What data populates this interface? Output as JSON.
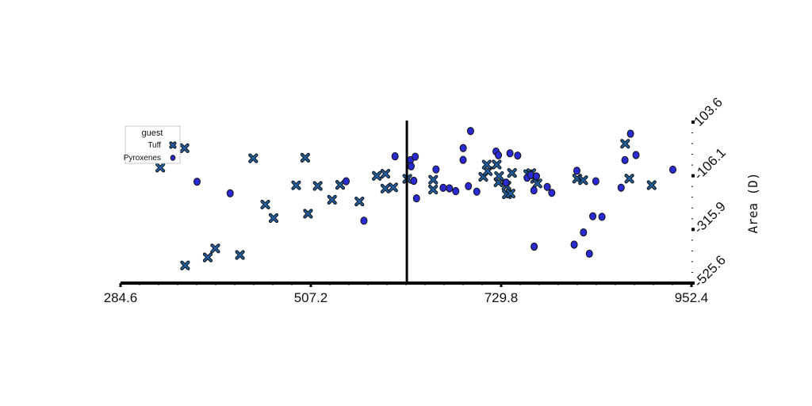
{
  "chart_data": {
    "type": "scatter",
    "xlim": [
      284.6,
      952.4
    ],
    "ylim": [
      -525.6,
      103.6
    ],
    "x_ticks": [
      "284.6",
      "507.2",
      "729.8",
      "952.4"
    ],
    "y_ticks": [
      "103.6",
      "-106.1",
      "-315.9",
      "-525.6"
    ],
    "ylabel": "Area (D)",
    "vline_x": 619.5,
    "grid": false,
    "legend": {
      "title": "guest",
      "placement": "top-left",
      "entries": [
        "Tuff",
        "Pyroxenes"
      ]
    },
    "colors": {
      "Tuff": "#1f5fa0",
      "Pyroxenes": "#2a2ad2",
      "edge": "#111111"
    },
    "series": [
      {
        "name": "Tuff",
        "marker": "x",
        "points": [
          [
            359.4,
            1.6
          ],
          [
            331.1,
            -74.4
          ],
          [
            386.6,
            -425.3
          ],
          [
            395.4,
            -390.2
          ],
          [
            360.1,
            -456.5
          ],
          [
            424.3,
            -415.5
          ],
          [
            439.8,
            -37.7
          ],
          [
            453.9,
            -218.6
          ],
          [
            463.6,
            -271.3
          ],
          [
            500.6,
            -35.4
          ],
          [
            490.0,
            -143.4
          ],
          [
            503.9,
            -254.4
          ],
          [
            515.2,
            -146.0
          ],
          [
            532.0,
            -199.7
          ],
          [
            541.5,
            -141.6
          ],
          [
            564.0,
            -206.7
          ],
          [
            584.3,
            -106.5
          ],
          [
            594.4,
            -98.1
          ],
          [
            594.3,
            -156.2
          ],
          [
            603.5,
            -151.5
          ],
          [
            620.0,
            -118.1
          ],
          [
            650.3,
            -121.7
          ],
          [
            650.2,
            -160.0
          ],
          [
            708.9,
            -110.3
          ],
          [
            714.1,
            -88.0
          ],
          [
            712.9,
            -62.4
          ],
          [
            724.6,
            -62.2
          ],
          [
            726.7,
            -131.5
          ],
          [
            727.3,
            -107.4
          ],
          [
            736.0,
            -145.2
          ],
          [
            736.5,
            -178.1
          ],
          [
            742.5,
            -95.2
          ],
          [
            740.8,
            -175.5
          ],
          [
            761.5,
            -100.3
          ],
          [
            765.0,
            -95.9
          ],
          [
            769.6,
            -118.0
          ],
          [
            772.2,
            -136.0
          ],
          [
            818.7,
            -117.2
          ],
          [
            825.7,
            -123.4
          ],
          [
            874.8,
            19.0
          ],
          [
            879.7,
            -117.3
          ],
          [
            905.8,
            -142.8
          ]
        ]
      },
      {
        "name": "Pyroxenes",
        "marker": "o",
        "points": [
          [
            374.1,
            -129.4
          ],
          [
            412.8,
            -174.6
          ],
          [
            548.5,
            -127.5
          ],
          [
            569.3,
            -281.8
          ],
          [
            605.7,
            -30.1
          ],
          [
            623.6,
            -45.0
          ],
          [
            624.5,
            -69.2
          ],
          [
            629.3,
            -31.4
          ],
          [
            630.8,
            -194.4
          ],
          [
            627.6,
            -125.8
          ],
          [
            653.6,
            -81.4
          ],
          [
            662.0,
            -153.2
          ],
          [
            669.3,
            -155.2
          ],
          [
            676.7,
            -166.1
          ],
          [
            685.3,
            -44.1
          ],
          [
            685.4,
            2.1
          ],
          [
            691.5,
            -146.8
          ],
          [
            694.0,
            68.7
          ],
          [
            701.3,
            -168.3
          ],
          [
            723.8,
            -11.2
          ],
          [
            726.6,
            -25.8
          ],
          [
            735.5,
            -132.7
          ],
          [
            740.1,
            -18.3
          ],
          [
            749.1,
            -27.2
          ],
          [
            760.2,
            -113.9
          ],
          [
            764.4,
            -103.1
          ],
          [
            768.1,
            -163.2
          ],
          [
            768.4,
            -383.0
          ],
          [
            771.0,
            -108.3
          ],
          [
            783.7,
            -149.7
          ],
          [
            789.0,
            -172.9
          ],
          [
            815.2,
            -375.3
          ],
          [
            818.4,
            -86.5
          ],
          [
            826.1,
            -327.6
          ],
          [
            833.0,
            -410.8
          ],
          [
            837.0,
            -264.3
          ],
          [
            840.5,
            -127.6
          ],
          [
            847.7,
            -266.5
          ],
          [
            870.1,
            -152.8
          ],
          [
            874.6,
            -45.0
          ],
          [
            881.1,
            58.3
          ],
          [
            887.5,
            -25.0
          ],
          [
            930.6,
            -82.1
          ]
        ]
      }
    ]
  }
}
